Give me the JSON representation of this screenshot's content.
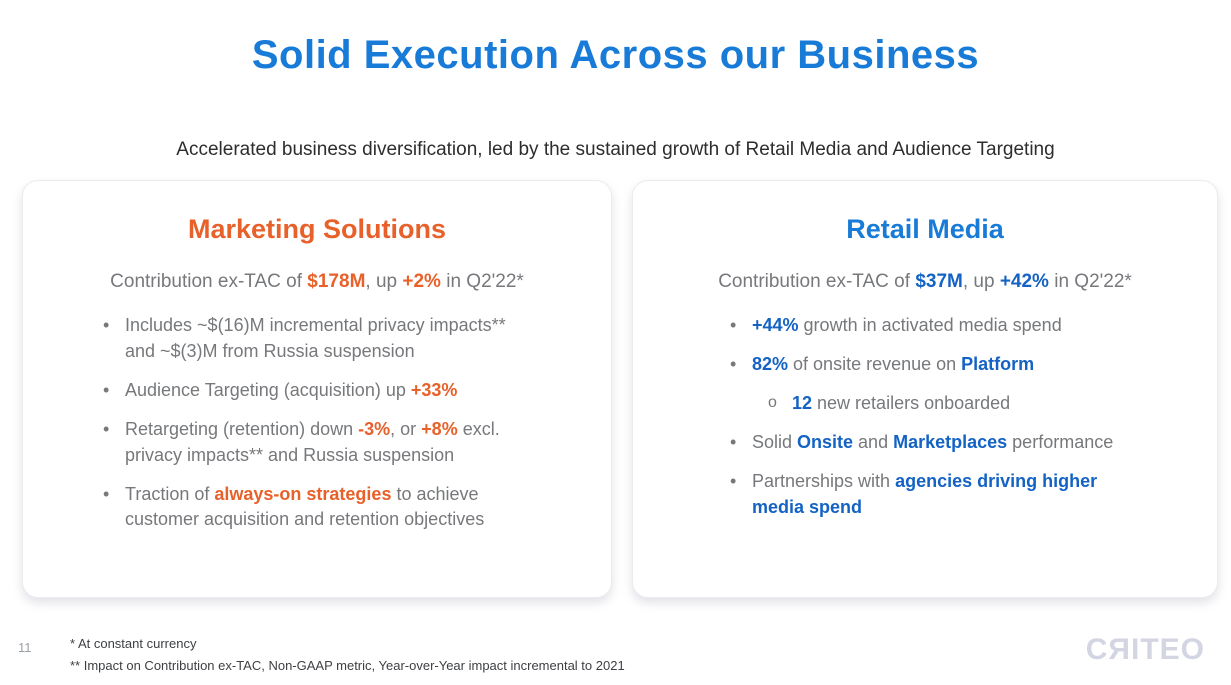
{
  "slide": {
    "title": "Solid Execution Across our Business",
    "subtitle": "Accelerated business diversification, led by the sustained growth of Retail Media and Audience Targeting",
    "page_number": "11",
    "footnotes": [
      "* At constant currency",
      "** Impact on Contribution ex-TAC, Non-GAAP metric, Year-over-Year impact incremental to 2021"
    ],
    "logo": {
      "brand": "Criteo",
      "display_text": "CЯITEO"
    }
  },
  "colors": {
    "title_blue": "#187bd7",
    "orange_accent": "#e8612a",
    "blue_accent": "#187bd7",
    "blue_bold": "#1463c4",
    "body_gray": "#76787b",
    "logo_gray": "#d3d5e3"
  },
  "cards": [
    {
      "name": "marketing-solutions",
      "title": "Marketing Solutions",
      "accent": "#e8612a",
      "bold_color": "#e8612a",
      "headline": [
        {
          "text": "Contribution ex-TAC of "
        },
        {
          "text": "$178M",
          "bold": true
        },
        {
          "text": ", up "
        },
        {
          "text": "+2%",
          "bold": true
        },
        {
          "text": " in Q2'22*"
        }
      ],
      "bullets": [
        {
          "marker": "•",
          "indent": 0,
          "segments": [
            {
              "text": "Includes ~$(16)M incremental privacy impacts** and ~$(3)M from Russia suspension"
            }
          ]
        },
        {
          "marker": "•",
          "indent": 0,
          "segments": [
            {
              "text": "Audience Targeting (acquisition) up "
            },
            {
              "text": "+33%",
              "bold": true
            }
          ]
        },
        {
          "marker": "•",
          "indent": 0,
          "segments": [
            {
              "text": "Retargeting (retention) down "
            },
            {
              "text": "-3%",
              "bold": true
            },
            {
              "text": ", or "
            },
            {
              "text": "+8%",
              "bold": true
            },
            {
              "text": " excl. privacy impacts** and Russia suspension"
            }
          ]
        },
        {
          "marker": "•",
          "indent": 0,
          "segments": [
            {
              "text": "Traction of "
            },
            {
              "text": "always-on strategies",
              "bold": true
            },
            {
              "text": " to achieve customer acquisition and retention objectives"
            }
          ]
        }
      ]
    },
    {
      "name": "retail-media",
      "title": "Retail Media",
      "accent": "#187bd7",
      "bold_color": "#1463c4",
      "headline": [
        {
          "text": "Contribution ex-TAC of "
        },
        {
          "text": "$37M",
          "bold": true
        },
        {
          "text": ", up "
        },
        {
          "text": "+42%",
          "bold": true
        },
        {
          "text": " in Q2'22*"
        }
      ],
      "bullets": [
        {
          "marker": "•",
          "indent": 0,
          "segments": [
            {
              "text": "+44%",
              "bold": true
            },
            {
              "text": " growth in activated media spend"
            }
          ]
        },
        {
          "marker": "•",
          "indent": 0,
          "segments": [
            {
              "text": "82%",
              "bold": true
            },
            {
              "text": " of onsite revenue on "
            },
            {
              "text": "Platform",
              "bold": true
            }
          ]
        },
        {
          "marker": "o",
          "indent": 1,
          "segments": [
            {
              "text": "12",
              "bold": true
            },
            {
              "text": " new retailers onboarded"
            }
          ]
        },
        {
          "marker": "•",
          "indent": 0,
          "segments": [
            {
              "text": "Solid "
            },
            {
              "text": "Onsite",
              "bold": true
            },
            {
              "text": " and "
            },
            {
              "text": "Marketplaces",
              "bold": true
            },
            {
              "text": " performance"
            }
          ]
        },
        {
          "marker": "•",
          "indent": 0,
          "segments": [
            {
              "text": "Partnerships with "
            },
            {
              "text": "agencies driving higher media spend",
              "bold": true
            }
          ]
        }
      ]
    }
  ]
}
